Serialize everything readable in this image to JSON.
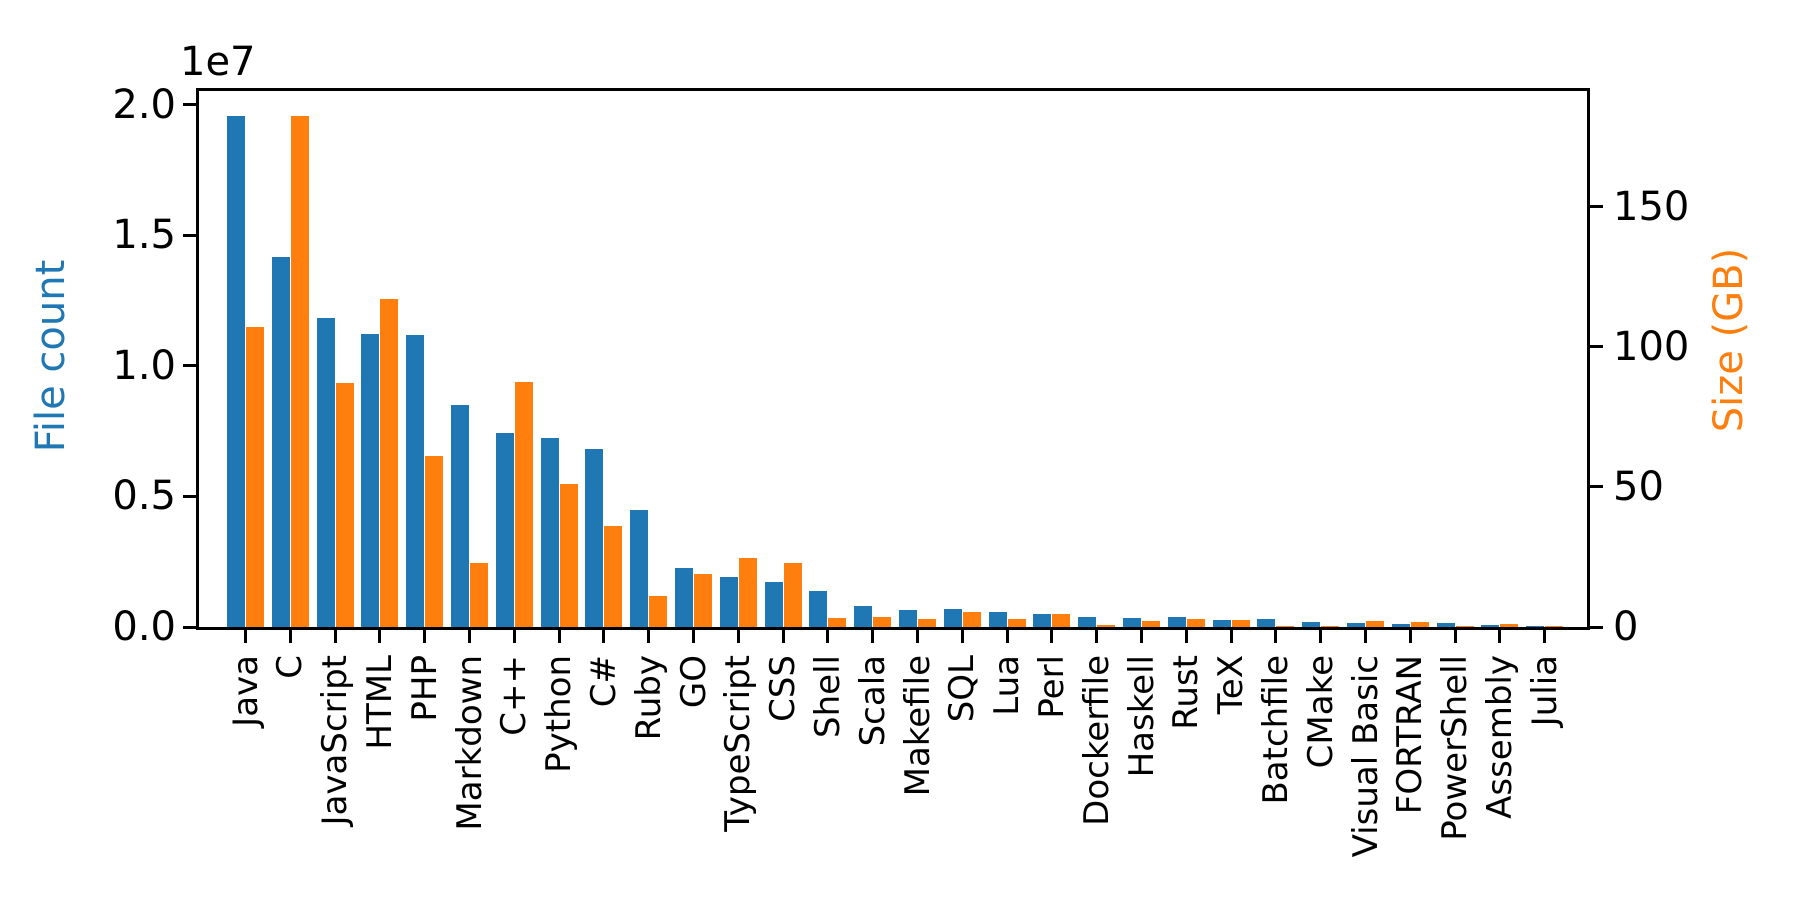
{
  "chart_data": {
    "type": "bar",
    "title": "",
    "categories": [
      "Java",
      "C",
      "JavaScript",
      "HTML",
      "PHP",
      "Markdown",
      "C++",
      "Python",
      "C#",
      "Ruby",
      "GO",
      "TypeScript",
      "CSS",
      "Shell",
      "Scala",
      "Makefile",
      "SQL",
      "Lua",
      "Perl",
      "Dockerfile",
      "Haskell",
      "Rust",
      "TeX",
      "Batchfile",
      "CMake",
      "Visual Basic",
      "FORTRAN",
      "PowerShell",
      "Assembly",
      "Julia"
    ],
    "series": [
      {
        "name": "File count",
        "axis": "left",
        "color": "#1f77b4",
        "values": [
          19560000,
          14180000,
          11820000,
          11200000,
          11160000,
          8500000,
          7430000,
          7230000,
          6810000,
          4480000,
          2250000,
          1900000,
          1730000,
          1390000,
          820000,
          650000,
          680000,
          590000,
          500000,
          370000,
          345000,
          365000,
          270000,
          305000,
          180000,
          165000,
          105000,
          140000,
          95000,
          40000
        ]
      },
      {
        "name": "Size (GB)",
        "axis": "right",
        "color": "#ff7f0e",
        "values": [
          107,
          182.5,
          87,
          117,
          61,
          23,
          87.5,
          51,
          36,
          11,
          19,
          24.5,
          23,
          3.1,
          3.7,
          2.9,
          5.5,
          2.8,
          4.6,
          0.7,
          2.0,
          2.9,
          2.5,
          0.35,
          0.35,
          2.0,
          1.8,
          0.35,
          1.1,
          0.2
        ]
      }
    ],
    "left_axis": {
      "label": "File count",
      "label_color": "#1f77b4",
      "offset_text": "1e7",
      "tick_values": [
        0,
        5000000,
        10000000,
        15000000,
        20000000
      ],
      "tick_labels": [
        "0.0",
        "0.5",
        "1.0",
        "1.5",
        "2.0"
      ],
      "ylim": [
        0,
        20517000
      ]
    },
    "right_axis": {
      "label": "Size (GB)",
      "label_color": "#ff7f0e",
      "tick_values": [
        0,
        50,
        100,
        150
      ],
      "tick_labels": [
        "0",
        "50",
        "100",
        "150"
      ],
      "ylim": [
        0,
        191.4
      ]
    },
    "xlabel": "",
    "grid": false,
    "legend": "none"
  }
}
